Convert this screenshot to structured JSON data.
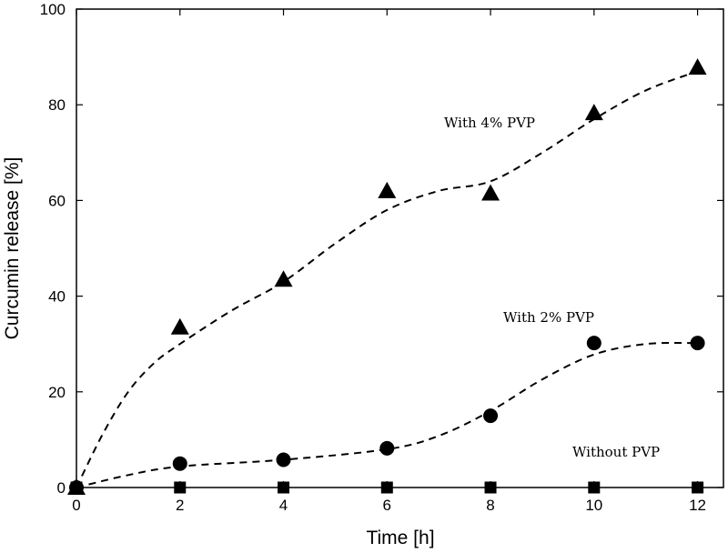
{
  "chart_data": {
    "type": "scatter",
    "title": "",
    "xlabel": "Time [h]",
    "ylabel": "Curcumin release [%]",
    "xlim": [
      0,
      12.5
    ],
    "ylim": [
      0,
      100
    ],
    "xticks": [
      0,
      2,
      4,
      6,
      8,
      10,
      12
    ],
    "yticks": [
      0,
      20,
      40,
      60,
      80,
      100
    ],
    "grid": false,
    "series": [
      {
        "name": "With 4% PVP",
        "marker": "triangle",
        "x": [
          0,
          2,
          4,
          6,
          8,
          10,
          12
        ],
        "y": [
          0,
          33.5,
          43.5,
          62,
          61.5,
          78.3,
          87.8
        ],
        "fit": [
          [
            0,
            0
          ],
          [
            0.5,
            11
          ],
          [
            1,
            20
          ],
          [
            1.5,
            26
          ],
          [
            2,
            30
          ],
          [
            3,
            37
          ],
          [
            4,
            43
          ],
          [
            5,
            51
          ],
          [
            6,
            58
          ],
          [
            7,
            62
          ],
          [
            8,
            64
          ],
          [
            9,
            70
          ],
          [
            10,
            77
          ],
          [
            11,
            83
          ],
          [
            12,
            87
          ]
        ]
      },
      {
        "name": "With 2% PVP",
        "marker": "circle",
        "x": [
          0,
          2,
          4,
          6,
          8,
          10,
          12
        ],
        "y": [
          0,
          5,
          5.8,
          8.2,
          15,
          30.2,
          30.2
        ],
        "fit": [
          [
            0,
            0
          ],
          [
            1,
            2.6
          ],
          [
            2,
            4.4
          ],
          [
            4,
            5.8
          ],
          [
            6,
            8
          ],
          [
            7,
            10.8
          ],
          [
            8,
            16
          ],
          [
            9,
            22.6
          ],
          [
            10,
            27.8
          ],
          [
            11,
            30
          ],
          [
            12,
            30.2
          ]
        ]
      },
      {
        "name": "Without PVP",
        "marker": "square",
        "x": [
          0,
          2,
          4,
          6,
          8,
          10,
          12
        ],
        "y": [
          0,
          0,
          0,
          0,
          0,
          0,
          0
        ]
      }
    ],
    "annotations": [
      {
        "text": "With 4% PVP",
        "series": 0
      },
      {
        "text": "With 2% PVP",
        "series": 1
      },
      {
        "text": "Without PVP",
        "series": 2
      }
    ]
  }
}
